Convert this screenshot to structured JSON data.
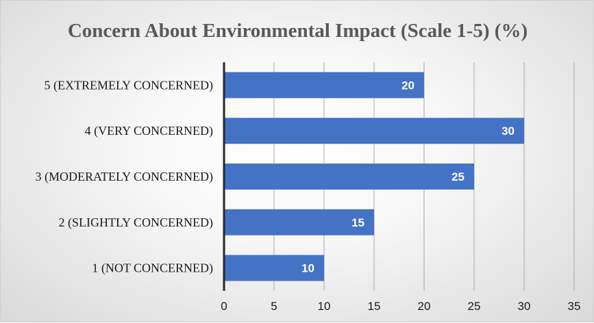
{
  "chart_data": {
    "type": "bar",
    "orientation": "horizontal",
    "title": "Concern About Environmental Impact (Scale 1-5) (%)",
    "categories": [
      "5 (EXTREMELY CONCERNED)",
      "4 (VERY CONCERNED)",
      "3 (MODERATELY CONCERNED)",
      "2 (SLIGHTLY CONCERNED)",
      "1 (NOT CONCERNED)"
    ],
    "values": [
      20,
      30,
      25,
      15,
      10
    ],
    "data_labels": [
      "20",
      "30",
      "25",
      "15",
      "10"
    ],
    "xlim": [
      0,
      35
    ],
    "xticks": [
      0,
      5,
      10,
      15,
      20,
      25,
      30,
      35
    ],
    "xtick_labels": [
      "0",
      "5",
      "10",
      "15",
      "20",
      "25",
      "30",
      "35"
    ],
    "grid": "vertical",
    "legend": "none",
    "colors": {
      "bar": "#4472c4",
      "gridline": "#a6a6a6",
      "axis": "#262626",
      "title": "#595959"
    }
  }
}
